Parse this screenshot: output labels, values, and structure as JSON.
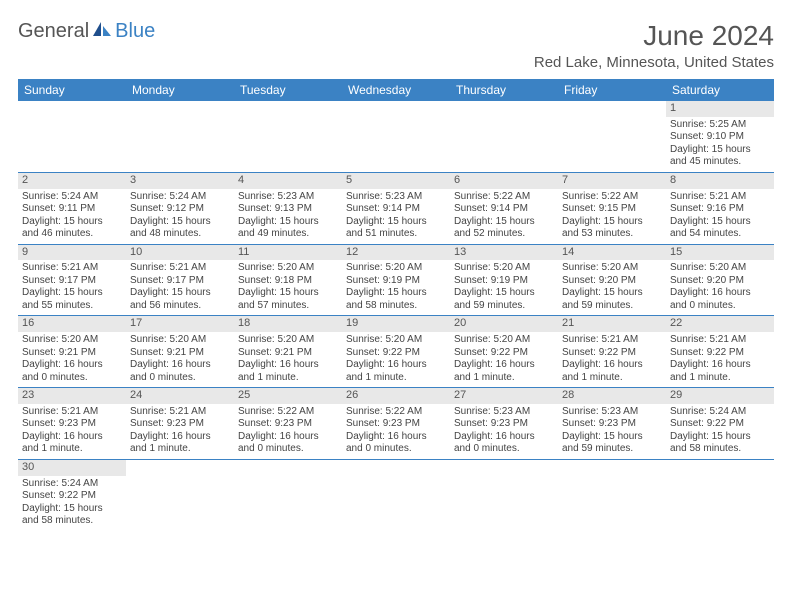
{
  "brand": {
    "part1": "General",
    "part2": "Blue"
  },
  "title": "June 2024",
  "location": "Red Lake, Minnesota, United States",
  "colors": {
    "header_bg": "#3b82c4",
    "header_text": "#ffffff",
    "daynum_bg": "#e8e8e8",
    "cell_border": "#3b82c4",
    "body_text": "#444444",
    "title_text": "#555555"
  },
  "day_labels": [
    "Sunday",
    "Monday",
    "Tuesday",
    "Wednesday",
    "Thursday",
    "Friday",
    "Saturday"
  ],
  "weeks": [
    [
      null,
      null,
      null,
      null,
      null,
      null,
      {
        "n": "1",
        "sunrise": "Sunrise: 5:25 AM",
        "sunset": "Sunset: 9:10 PM",
        "daylight": "Daylight: 15 hours and 45 minutes."
      }
    ],
    [
      {
        "n": "2",
        "sunrise": "Sunrise: 5:24 AM",
        "sunset": "Sunset: 9:11 PM",
        "daylight": "Daylight: 15 hours and 46 minutes."
      },
      {
        "n": "3",
        "sunrise": "Sunrise: 5:24 AM",
        "sunset": "Sunset: 9:12 PM",
        "daylight": "Daylight: 15 hours and 48 minutes."
      },
      {
        "n": "4",
        "sunrise": "Sunrise: 5:23 AM",
        "sunset": "Sunset: 9:13 PM",
        "daylight": "Daylight: 15 hours and 49 minutes."
      },
      {
        "n": "5",
        "sunrise": "Sunrise: 5:23 AM",
        "sunset": "Sunset: 9:14 PM",
        "daylight": "Daylight: 15 hours and 51 minutes."
      },
      {
        "n": "6",
        "sunrise": "Sunrise: 5:22 AM",
        "sunset": "Sunset: 9:14 PM",
        "daylight": "Daylight: 15 hours and 52 minutes."
      },
      {
        "n": "7",
        "sunrise": "Sunrise: 5:22 AM",
        "sunset": "Sunset: 9:15 PM",
        "daylight": "Daylight: 15 hours and 53 minutes."
      },
      {
        "n": "8",
        "sunrise": "Sunrise: 5:21 AM",
        "sunset": "Sunset: 9:16 PM",
        "daylight": "Daylight: 15 hours and 54 minutes."
      }
    ],
    [
      {
        "n": "9",
        "sunrise": "Sunrise: 5:21 AM",
        "sunset": "Sunset: 9:17 PM",
        "daylight": "Daylight: 15 hours and 55 minutes."
      },
      {
        "n": "10",
        "sunrise": "Sunrise: 5:21 AM",
        "sunset": "Sunset: 9:17 PM",
        "daylight": "Daylight: 15 hours and 56 minutes."
      },
      {
        "n": "11",
        "sunrise": "Sunrise: 5:20 AM",
        "sunset": "Sunset: 9:18 PM",
        "daylight": "Daylight: 15 hours and 57 minutes."
      },
      {
        "n": "12",
        "sunrise": "Sunrise: 5:20 AM",
        "sunset": "Sunset: 9:19 PM",
        "daylight": "Daylight: 15 hours and 58 minutes."
      },
      {
        "n": "13",
        "sunrise": "Sunrise: 5:20 AM",
        "sunset": "Sunset: 9:19 PM",
        "daylight": "Daylight: 15 hours and 59 minutes."
      },
      {
        "n": "14",
        "sunrise": "Sunrise: 5:20 AM",
        "sunset": "Sunset: 9:20 PM",
        "daylight": "Daylight: 15 hours and 59 minutes."
      },
      {
        "n": "15",
        "sunrise": "Sunrise: 5:20 AM",
        "sunset": "Sunset: 9:20 PM",
        "daylight": "Daylight: 16 hours and 0 minutes."
      }
    ],
    [
      {
        "n": "16",
        "sunrise": "Sunrise: 5:20 AM",
        "sunset": "Sunset: 9:21 PM",
        "daylight": "Daylight: 16 hours and 0 minutes."
      },
      {
        "n": "17",
        "sunrise": "Sunrise: 5:20 AM",
        "sunset": "Sunset: 9:21 PM",
        "daylight": "Daylight: 16 hours and 0 minutes."
      },
      {
        "n": "18",
        "sunrise": "Sunrise: 5:20 AM",
        "sunset": "Sunset: 9:21 PM",
        "daylight": "Daylight: 16 hours and 1 minute."
      },
      {
        "n": "19",
        "sunrise": "Sunrise: 5:20 AM",
        "sunset": "Sunset: 9:22 PM",
        "daylight": "Daylight: 16 hours and 1 minute."
      },
      {
        "n": "20",
        "sunrise": "Sunrise: 5:20 AM",
        "sunset": "Sunset: 9:22 PM",
        "daylight": "Daylight: 16 hours and 1 minute."
      },
      {
        "n": "21",
        "sunrise": "Sunrise: 5:21 AM",
        "sunset": "Sunset: 9:22 PM",
        "daylight": "Daylight: 16 hours and 1 minute."
      },
      {
        "n": "22",
        "sunrise": "Sunrise: 5:21 AM",
        "sunset": "Sunset: 9:22 PM",
        "daylight": "Daylight: 16 hours and 1 minute."
      }
    ],
    [
      {
        "n": "23",
        "sunrise": "Sunrise: 5:21 AM",
        "sunset": "Sunset: 9:23 PM",
        "daylight": "Daylight: 16 hours and 1 minute."
      },
      {
        "n": "24",
        "sunrise": "Sunrise: 5:21 AM",
        "sunset": "Sunset: 9:23 PM",
        "daylight": "Daylight: 16 hours and 1 minute."
      },
      {
        "n": "25",
        "sunrise": "Sunrise: 5:22 AM",
        "sunset": "Sunset: 9:23 PM",
        "daylight": "Daylight: 16 hours and 0 minutes."
      },
      {
        "n": "26",
        "sunrise": "Sunrise: 5:22 AM",
        "sunset": "Sunset: 9:23 PM",
        "daylight": "Daylight: 16 hours and 0 minutes."
      },
      {
        "n": "27",
        "sunrise": "Sunrise: 5:23 AM",
        "sunset": "Sunset: 9:23 PM",
        "daylight": "Daylight: 16 hours and 0 minutes."
      },
      {
        "n": "28",
        "sunrise": "Sunrise: 5:23 AM",
        "sunset": "Sunset: 9:23 PM",
        "daylight": "Daylight: 15 hours and 59 minutes."
      },
      {
        "n": "29",
        "sunrise": "Sunrise: 5:24 AM",
        "sunset": "Sunset: 9:22 PM",
        "daylight": "Daylight: 15 hours and 58 minutes."
      }
    ],
    [
      {
        "n": "30",
        "sunrise": "Sunrise: 5:24 AM",
        "sunset": "Sunset: 9:22 PM",
        "daylight": "Daylight: 15 hours and 58 minutes."
      },
      null,
      null,
      null,
      null,
      null,
      null
    ]
  ]
}
